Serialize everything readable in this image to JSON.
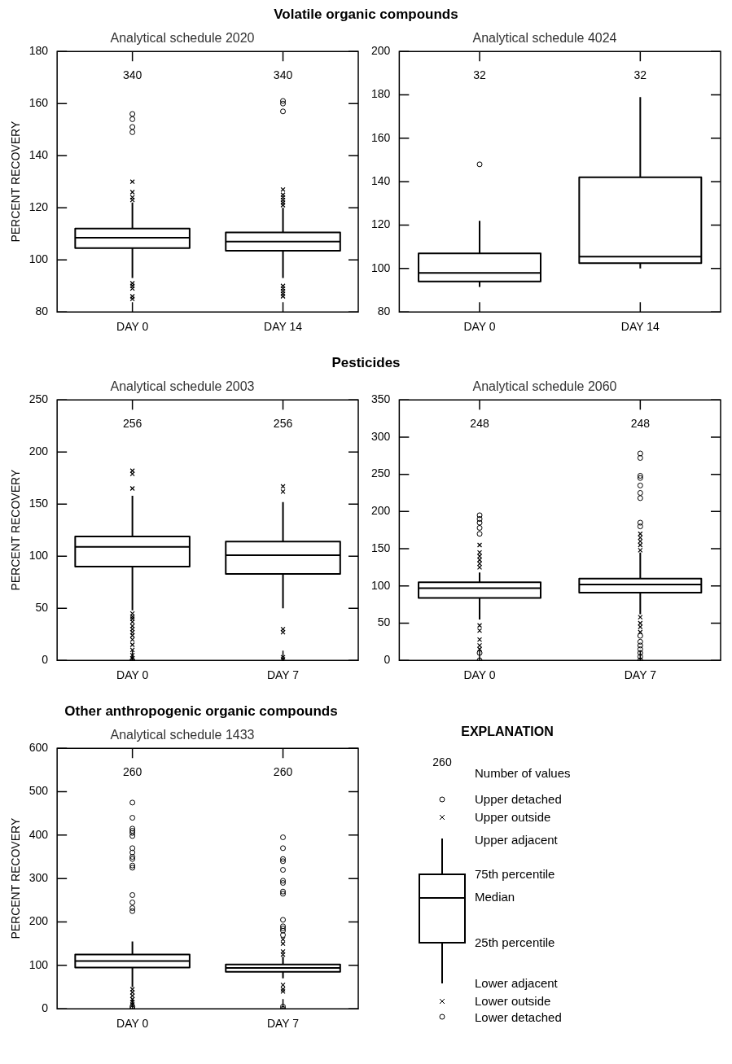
{
  "chart_data": [
    {
      "type": "box",
      "title": "Volatile organic compounds",
      "subtitle": "Analytical schedule 2020",
      "ylabel": "PERCENT RECOVERY",
      "categories": [
        "DAY 0",
        "DAY 14"
      ],
      "ylim": [
        80,
        180
      ],
      "yticks": [
        80,
        100,
        120,
        140,
        160,
        180
      ],
      "boxes": [
        {
          "low": 93,
          "q1": 104.5,
          "median": 108.5,
          "q3": 112,
          "high": 122,
          "outliers": [
            149,
            151,
            154,
            156
          ]
        },
        {
          "low": 93,
          "q1": 103.5,
          "median": 107,
          "q3": 110.5,
          "high": 120,
          "outliers": [
            157,
            160,
            161
          ]
        }
      ],
      "series": [
        {
          "type": "scatter",
          "marker": "cross",
          "color": "#000000",
          "x": [
            "DAY 0",
            "DAY 0",
            "DAY 0",
            "DAY 0",
            "DAY 0",
            "DAY 0",
            "DAY 0",
            "DAY 0",
            "DAY 0",
            "DAY 14",
            "DAY 14",
            "DAY 14",
            "DAY 14",
            "DAY 14",
            "DAY 14",
            "DAY 14",
            "DAY 14",
            "DAY 14",
            "DAY 14",
            "DAY 14"
          ],
          "values": [
            130,
            126,
            124,
            123,
            91,
            90,
            89,
            86,
            85,
            127,
            125,
            124,
            123,
            122,
            121,
            90,
            89,
            88,
            87,
            86
          ]
        }
      ],
      "annotations": [
        "340",
        "340"
      ]
    },
    {
      "type": "box",
      "subtitle": "Analytical schedule 4024",
      "categories": [
        "DAY 0",
        "DAY 14"
      ],
      "ylim": [
        80,
        200
      ],
      "yticks": [
        80,
        100,
        120,
        140,
        160,
        180,
        200
      ],
      "boxes": [
        {
          "low": 91.5,
          "q1": 94,
          "median": 98,
          "q3": 107,
          "high": 122,
          "outliers": [
            148
          ]
        },
        {
          "low": 100,
          "q1": 102.5,
          "median": 105.5,
          "q3": 142,
          "high": 179
        }
      ],
      "annotations": [
        "32",
        "32"
      ]
    },
    {
      "type": "box",
      "title": "Pesticides",
      "subtitle": "Analytical schedule 2003",
      "ylabel": "PERCENT RECOVERY",
      "categories": [
        "DAY 0",
        "DAY 7"
      ],
      "ylim": [
        0,
        250
      ],
      "yticks": [
        0,
        50,
        100,
        150,
        200,
        250
      ],
      "boxes": [
        {
          "low": 48,
          "q1": 90,
          "median": 109,
          "q3": 119,
          "high": 158,
          "outliers": [
            0
          ]
        },
        {
          "low": 50,
          "q1": 83,
          "median": 101,
          "q3": 114,
          "high": 152
        }
      ],
      "series": [
        {
          "type": "scatter",
          "marker": "cross",
          "color": "#000000",
          "x": [
            "DAY 0",
            "DAY 0",
            "DAY 0",
            "DAY 0",
            "DAY 0",
            "DAY 0",
            "DAY 0",
            "DAY 0",
            "DAY 0",
            "DAY 0",
            "DAY 0",
            "DAY 0",
            "DAY 0",
            "DAY 0",
            "DAY 0",
            "DAY 0",
            "DAY 7",
            "DAY 7",
            "DAY 7",
            "DAY 7",
            "DAY 7",
            "DAY 7",
            "DAY 7"
          ],
          "values": [
            182,
            179,
            165,
            45,
            42,
            40,
            37,
            33,
            30,
            27,
            24,
            20,
            15,
            10,
            5,
            2,
            167,
            162,
            30,
            27,
            null,
            3,
            1
          ]
        }
      ],
      "annotations": [
        "256",
        "256"
      ]
    },
    {
      "type": "box",
      "subtitle": "Analytical schedule 2060",
      "categories": [
        "DAY 0",
        "DAY 7"
      ],
      "ylim": [
        0,
        350
      ],
      "yticks": [
        0,
        50,
        100,
        150,
        200,
        250,
        300,
        350
      ],
      "boxes": [
        {
          "low": 55,
          "q1": 84,
          "median": 97,
          "q3": 105,
          "high": 118,
          "outliers": [
            195,
            190,
            185,
            178,
            170,
            10,
            0
          ]
        },
        {
          "low": 62,
          "q1": 91,
          "median": 102,
          "q3": 110,
          "high": 145,
          "outliers": [
            278,
            272,
            248,
            245,
            235,
            225,
            218,
            185,
            180,
            33,
            25,
            20,
            15,
            10,
            5,
            0
          ]
        }
      ],
      "series": [
        {
          "type": "scatter",
          "marker": "cross",
          "color": "#000000",
          "x": [
            "DAY 0",
            "DAY 0",
            "DAY 0",
            "DAY 0",
            "DAY 0",
            "DAY 0",
            "DAY 0",
            "DAY 0",
            "DAY 0",
            "DAY 0",
            "DAY 0",
            "DAY 0",
            "DAY 0",
            "DAY 7",
            "DAY 7",
            "DAY 7",
            "DAY 7",
            "DAY 7",
            "DAY 7",
            "DAY 7",
            "DAY 7",
            "DAY 7"
          ],
          "values": [
            155,
            null,
            145,
            140,
            135,
            130,
            125,
            47,
            40,
            null,
            28,
            20,
            15,
            170,
            165,
            160,
            155,
            148,
            58,
            50,
            45,
            38
          ]
        }
      ],
      "annotations": [
        "248",
        "248"
      ]
    },
    {
      "type": "box",
      "title": "Other anthropogenic organic compounds",
      "subtitle": "Analytical schedule 1433",
      "ylabel": "PERCENT RECOVERY",
      "categories": [
        "DAY 0",
        "DAY 7"
      ],
      "ylim": [
        0,
        600
      ],
      "yticks": [
        0,
        100,
        200,
        300,
        400,
        500,
        600
      ],
      "boxes": [
        {
          "low": 50,
          "q1": 95,
          "median": 110,
          "q3": 125,
          "high": 155,
          "outliers": [
            475,
            440,
            415,
            410,
            405,
            398,
            370,
            360,
            350,
            345,
            330,
            325,
            262,
            245,
            232,
            225,
            5,
            0
          ]
        },
        {
          "low": 70,
          "q1": 85,
          "median": 94,
          "q3": 102,
          "high": 120,
          "outliers": [
            395,
            370,
            345,
            340,
            320,
            295,
            290,
            270,
            265,
            205,
            190,
            185,
            180,
            170,
            5,
            0
          ]
        }
      ],
      "series": [
        {
          "type": "scatter",
          "marker": "cross",
          "color": "#000000",
          "x": [
            "DAY 0",
            "DAY 0",
            "DAY 0",
            "DAY 0",
            "DAY 0",
            "DAY 0",
            "DAY 7",
            "DAY 7",
            "DAY 7",
            "DAY 7",
            "DAY 7",
            "DAY 7",
            "DAY 7",
            "DAY 7"
          ],
          "values": [
            45,
            38,
            30,
            22,
            15,
            10,
            160,
            150,
            null,
            132,
            125,
            55,
            45,
            40
          ]
        }
      ],
      "annotations": [
        "260",
        "260"
      ]
    },
    {
      "type": "other",
      "title": "EXPLANATION",
      "annotations": [
        "260",
        "Number of values",
        "Upper detached",
        "Upper outside",
        "Upper adjacent",
        "75th percentile",
        "Median",
        "25th percentile",
        "Lower adjacent",
        "Lower outside",
        "Lower detached"
      ]
    }
  ]
}
